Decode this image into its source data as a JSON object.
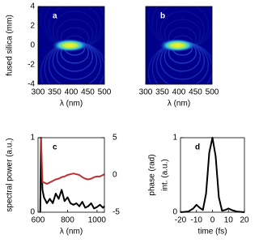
{
  "chart_data": [
    {
      "type": "heatmap",
      "panel_label": "a",
      "xlabel": "λ (nm)",
      "ylabel": "fused silica (mm)",
      "xlim": [
        300,
        500
      ],
      "xticks": [
        300,
        350,
        400,
        450,
        500
      ],
      "ylim": [
        -4,
        4
      ],
      "yticks": [
        -4,
        -2,
        0,
        2,
        4
      ]
    },
    {
      "type": "heatmap",
      "panel_label": "b",
      "xlabel": "λ (nm)",
      "xlim": [
        300,
        500
      ],
      "xticks": [
        300,
        350,
        400,
        450,
        500
      ],
      "ylim": [
        -4,
        4
      ]
    },
    {
      "type": "line",
      "panel_label": "c",
      "xlabel": "λ (nm)",
      "ylabel": "spectral power (a.u.)",
      "y2label": "phase (rad)",
      "xlim": [
        600,
        1050
      ],
      "xticks": [
        600,
        800,
        1000
      ],
      "ylim": [
        0,
        1
      ],
      "yticks": [
        0,
        1
      ],
      "y2lim": [
        -5,
        5
      ],
      "y2ticks": [
        -5,
        0,
        5
      ],
      "x": [
        615,
        620,
        625,
        630,
        640,
        660,
        680,
        700,
        720,
        740,
        760,
        780,
        800,
        820,
        840,
        860,
        880,
        900,
        920,
        940,
        960,
        980,
        1000,
        1020,
        1040,
        1050
      ],
      "series": [
        {
          "color": "#000000",
          "values": [
            0,
            1,
            0.55,
            0.3,
            0.2,
            0.12,
            0.18,
            0.12,
            0.25,
            0.18,
            0.3,
            0.15,
            0.2,
            0.12,
            0.1,
            0.12,
            0.08,
            0.14,
            0.06,
            0.08,
            0.12,
            0.05,
            0.07,
            0.1,
            0.06,
            0.08
          ]
        },
        {
          "color": "#c03030",
          "axis": "y2",
          "values": [
            5,
            5,
            2,
            -1,
            -1,
            -1.2,
            -1,
            -0.8,
            -0.6,
            -0.5,
            -0.3,
            -0.2,
            0,
            0.1,
            0.2,
            0.1,
            0,
            -0.3,
            -0.5,
            -0.6,
            -0.5,
            -0.3,
            -0.2,
            -0.2,
            0,
            0.1
          ]
        }
      ]
    },
    {
      "type": "line",
      "panel_label": "d",
      "xlabel": "time (fs)",
      "ylabel": "int. (a.u.)",
      "xlim": [
        -20,
        20
      ],
      "xticks": [
        -20,
        -10,
        0,
        10,
        20
      ],
      "ylim": [
        0,
        1
      ],
      "yticks": [
        0,
        1
      ],
      "x": [
        -20,
        -15,
        -12,
        -10,
        -8,
        -6,
        -4,
        -2,
        0,
        2,
        4,
        6,
        8,
        10,
        12,
        15,
        20
      ],
      "series": [
        {
          "color": "#000000",
          "values": [
            0,
            0.01,
            0.05,
            0.1,
            0.06,
            0.03,
            0.25,
            0.8,
            1,
            0.75,
            0.2,
            0.02,
            0.03,
            0.05,
            0.03,
            0.01,
            0
          ]
        }
      ]
    }
  ]
}
